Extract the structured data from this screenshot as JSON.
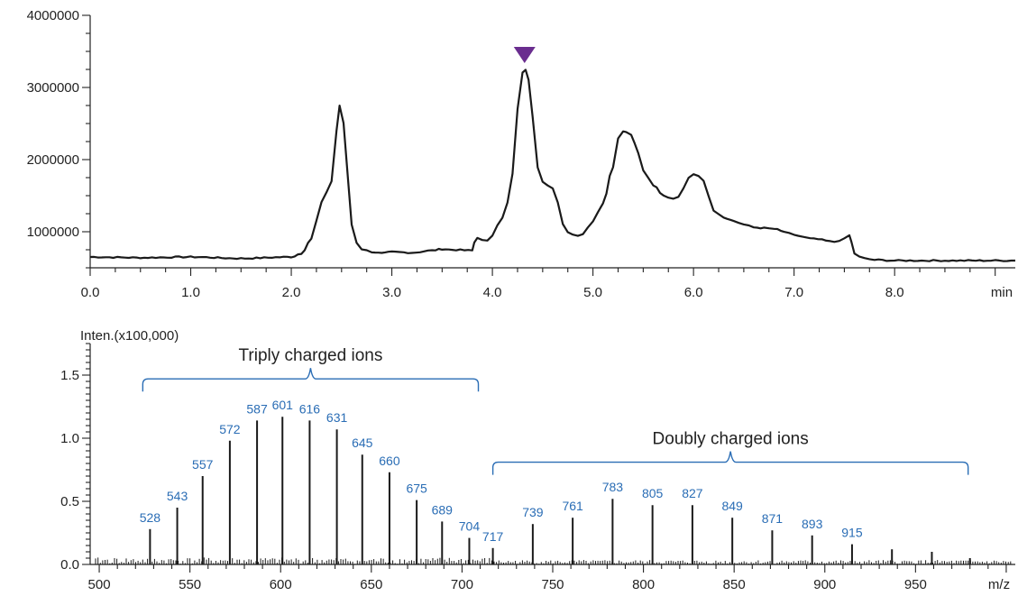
{
  "colors": {
    "marker": "#6a2d8f",
    "peak_label": "#2a6db5",
    "trace": "#1a1a1a"
  },
  "chart_data": [
    {
      "type": "line",
      "title": "",
      "xlabel": "min",
      "ylabel": "",
      "xlim": [
        0.0,
        9.2
      ],
      "ylim": [
        500000,
        4000000
      ],
      "x_ticks": [
        "0.0",
        "1.0",
        "2.0",
        "3.0",
        "4.0",
        "5.0",
        "6.0",
        "7.0",
        "8.0"
      ],
      "y_ticks": [
        "1000000",
        "2000000",
        "3000000",
        "4000000"
      ],
      "marker": {
        "shape": "triangle-down",
        "x": 4.32,
        "y": 3450000
      },
      "series": [
        {
          "x": [
            0.0,
            0.5,
            1.0,
            1.5,
            2.0,
            2.1,
            2.2,
            2.3,
            2.35,
            2.4,
            2.45,
            2.48,
            2.52,
            2.56,
            2.6,
            2.65,
            2.7,
            2.8,
            2.9,
            3.0,
            3.2,
            3.4,
            3.5,
            3.6,
            3.8,
            3.82,
            3.85,
            3.9,
            3.95,
            4.0,
            4.05,
            4.1,
            4.15,
            4.2,
            4.25,
            4.3,
            4.33,
            4.36,
            4.4,
            4.45,
            4.5,
            4.55,
            4.6,
            4.65,
            4.7,
            4.75,
            4.8,
            4.85,
            4.9,
            5.0,
            5.1,
            5.2,
            5.25,
            5.3,
            5.33,
            5.38,
            5.45,
            5.5,
            5.6,
            5.7,
            5.8,
            5.85,
            5.9,
            5.95,
            6.0,
            6.05,
            6.1,
            6.15,
            6.2,
            6.3,
            6.4,
            6.5,
            6.6,
            6.7,
            6.8,
            6.9,
            7.0,
            7.2,
            7.4,
            7.5,
            7.55,
            7.57,
            7.6,
            7.65,
            7.7,
            7.8,
            8.0,
            8.5,
            9.0,
            9.2
          ],
          "y": [
            650000,
            640000,
            650000,
            630000,
            650000,
            700000,
            900000,
            1400000,
            1550000,
            1700000,
            2400000,
            2750000,
            2500000,
            1800000,
            1100000,
            850000,
            760000,
            720000,
            700000,
            720000,
            710000,
            740000,
            760000,
            750000,
            740000,
            850000,
            920000,
            880000,
            870000,
            950000,
            1100000,
            1200000,
            1400000,
            1800000,
            2700000,
            3200000,
            3250000,
            3100000,
            2600000,
            1900000,
            1700000,
            1650000,
            1600000,
            1400000,
            1100000,
            1000000,
            960000,
            950000,
            970000,
            1150000,
            1400000,
            1900000,
            2300000,
            2400000,
            2380000,
            2350000,
            2100000,
            1850000,
            1650000,
            1500000,
            1450000,
            1480000,
            1600000,
            1750000,
            1800000,
            1780000,
            1700000,
            1500000,
            1300000,
            1200000,
            1150000,
            1100000,
            1060000,
            1050000,
            1040000,
            1000000,
            950000,
            900000,
            860000,
            900000,
            950000,
            860000,
            700000,
            650000,
            630000,
            610000,
            600000,
            600000,
            600000,
            600000
          ]
        }
      ]
    },
    {
      "type": "bar",
      "title": "",
      "xlabel": "m/z",
      "ylabel": "Inten.(x100,000)",
      "xlim": [
        495,
        1005
      ],
      "ylim": [
        0,
        1.75
      ],
      "x_ticks": [
        "500",
        "550",
        "600",
        "650",
        "700",
        "750",
        "800",
        "850",
        "900",
        "950"
      ],
      "y_ticks": [
        "0.0",
        "0.5",
        "1.0",
        "1.5"
      ],
      "peaks": [
        {
          "mz": 528,
          "intensity": 0.28,
          "label": "528"
        },
        {
          "mz": 543,
          "intensity": 0.45,
          "label": "543"
        },
        {
          "mz": 557,
          "intensity": 0.7,
          "label": "557"
        },
        {
          "mz": 572,
          "intensity": 0.98,
          "label": "572"
        },
        {
          "mz": 587,
          "intensity": 1.14,
          "label": "587"
        },
        {
          "mz": 601,
          "intensity": 1.17,
          "label": "601"
        },
        {
          "mz": 616,
          "intensity": 1.14,
          "label": "616"
        },
        {
          "mz": 631,
          "intensity": 1.07,
          "label": "631"
        },
        {
          "mz": 645,
          "intensity": 0.87,
          "label": "645"
        },
        {
          "mz": 660,
          "intensity": 0.73,
          "label": "660"
        },
        {
          "mz": 675,
          "intensity": 0.51,
          "label": "675"
        },
        {
          "mz": 689,
          "intensity": 0.34,
          "label": "689"
        },
        {
          "mz": 704,
          "intensity": 0.21,
          "label": "704"
        },
        {
          "mz": 717,
          "intensity": 0.13,
          "label": "717"
        },
        {
          "mz": 739,
          "intensity": 0.32,
          "label": "739"
        },
        {
          "mz": 761,
          "intensity": 0.37,
          "label": "761"
        },
        {
          "mz": 783,
          "intensity": 0.52,
          "label": "783"
        },
        {
          "mz": 805,
          "intensity": 0.47,
          "label": "805"
        },
        {
          "mz": 827,
          "intensity": 0.47,
          "label": "827"
        },
        {
          "mz": 849,
          "intensity": 0.37,
          "label": "849"
        },
        {
          "mz": 871,
          "intensity": 0.27,
          "label": "871"
        },
        {
          "mz": 893,
          "intensity": 0.23,
          "label": "893"
        },
        {
          "mz": 915,
          "intensity": 0.16,
          "label": "915"
        },
        {
          "mz": 937,
          "intensity": 0.12,
          "label": ""
        },
        {
          "mz": 959,
          "intensity": 0.1,
          "label": ""
        },
        {
          "mz": 980,
          "intensity": 0.05,
          "label": ""
        }
      ],
      "brackets": [
        {
          "label": "Triply charged ions",
          "mz_start": 524,
          "mz_end": 709
        },
        {
          "label": "Doubly charged ions",
          "mz_start": 717,
          "mz_end": 979
        }
      ]
    }
  ]
}
